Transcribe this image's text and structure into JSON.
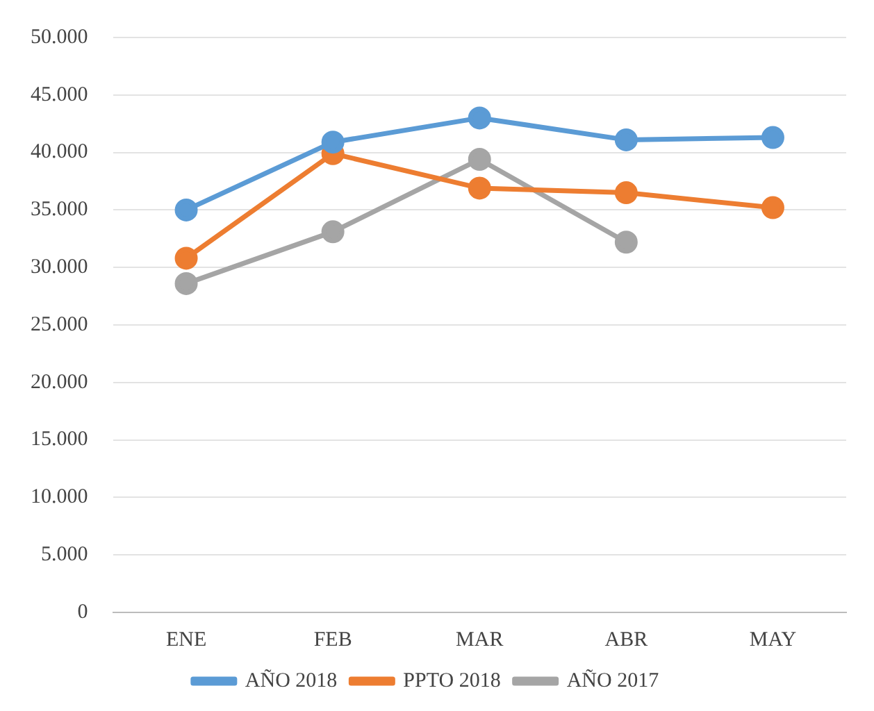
{
  "chart_data": {
    "type": "line",
    "categories": [
      "ENE",
      "FEB",
      "MAR",
      "ABR",
      "MAY"
    ],
    "series": [
      {
        "name": "AÑO 2018",
        "color": "#5b9bd5",
        "values": [
          35000,
          40900,
          43000,
          41100,
          41300
        ]
      },
      {
        "name": "PPTO 2018",
        "color": "#ed7d31",
        "values": [
          30800,
          39900,
          36900,
          36500,
          35200
        ]
      },
      {
        "name": "AÑO 2017",
        "color": "#a5a5a5",
        "values": [
          28600,
          33100,
          39400,
          32200,
          null
        ]
      }
    ],
    "ylim": [
      0,
      50000
    ],
    "yticks": [
      0,
      {
        "value": 5000,
        "label": "5.000"
      },
      {
        "value": 10000,
        "label": "10.000"
      },
      {
        "value": 15000,
        "label": "15.000"
      },
      {
        "value": 20000,
        "label": "20.000"
      },
      {
        "value": 25000,
        "label": "25.000"
      },
      {
        "value": 30000,
        "label": "30.000"
      },
      {
        "value": 35000,
        "label": "35.000"
      },
      {
        "value": 40000,
        "label": "40.000"
      },
      {
        "value": 45000,
        "label": "45.000"
      },
      {
        "value": 50000,
        "label": "50.000"
      }
    ],
    "grid": "y",
    "legend": "bottom",
    "marker": "circle",
    "line_style": "solid"
  }
}
